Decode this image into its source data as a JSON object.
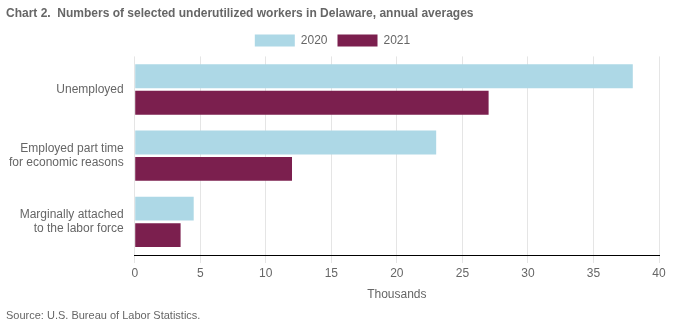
{
  "chart_data": {
    "type": "bar",
    "orientation": "horizontal",
    "title": "Chart 2.  Numbers of selected underutilized workers in Delaware, annual averages",
    "categories": [
      "Unemployed",
      "Employed part time\nfor economic reasons",
      "Marginally attached\nto the labor force"
    ],
    "series": [
      {
        "name": "2020",
        "color": "#add8e6",
        "values": [
          38,
          23,
          4.5
        ]
      },
      {
        "name": "2021",
        "color": "#7b1f4e",
        "values": [
          27,
          12,
          3.5
        ]
      }
    ],
    "xlabel": "Thousands",
    "xlim": [
      0,
      40
    ],
    "xticks": [
      0,
      5,
      10,
      15,
      20,
      25,
      30,
      35,
      40
    ],
    "grid": true,
    "legend": "top",
    "annotations": [
      "Source: U.S. Bureau of Labor Statistics."
    ]
  }
}
